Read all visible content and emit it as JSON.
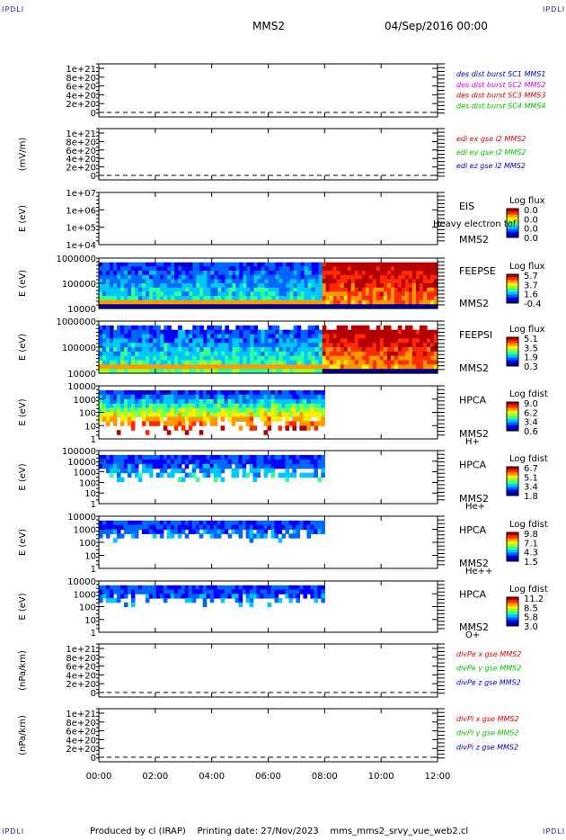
{
  "corners": {
    "tl": "IPDLI",
    "tr": "IPDLI",
    "bl": "IPDLI",
    "br": "IPDLI"
  },
  "header": {
    "spacecraft": "MMS2",
    "date": "04/Sep/2016 00:00"
  },
  "footer": {
    "produced": "Produced by cl (IRAP)",
    "printing": "Printing date: 27/Nov/2023",
    "file": "mms_mms2_srvy_vue_web2.cl"
  },
  "colors": {
    "red": "#d80000",
    "green": "#00c000",
    "blue": "#0000c8",
    "magenta": "#e000e0",
    "black": "#000000"
  },
  "chart_data": [
    {
      "type": "line",
      "ylabel": "",
      "yticks": [
        "1e+21",
        "8e+20",
        "6e+20",
        "4e+20",
        "2e+20",
        "0"
      ],
      "legend": [
        {
          "name": "des dist burst SC1 MMS1",
          "color": "#0000c8"
        },
        {
          "name": "des dist burst SC2 MMS2",
          "color": "#e000e0"
        },
        {
          "name": "des dist burst SC3 MMS3",
          "color": "#d80000"
        },
        {
          "name": "des dist burst SC4 MMS4",
          "color": "#00c000"
        }
      ]
    },
    {
      "type": "line",
      "ylabel": "(mV/m)",
      "yticks": [
        "1e+21",
        "8e+20",
        "6e+20",
        "4e+20",
        "2e+20",
        "0"
      ],
      "legend": [
        {
          "name": "edi ex gse l2 MMS2",
          "color": "#d80000"
        },
        {
          "name": "edi ey gse l2 MMS2",
          "color": "#00c000"
        },
        {
          "name": "edi ez gse l2 MMS2",
          "color": "#0000c8"
        }
      ]
    },
    {
      "type": "heatmap",
      "ylabel": "E (eV)",
      "yticks": [
        "1e+07",
        "1e+06",
        "1e+05",
        "1e+04"
      ],
      "label": [
        "EIS",
        "MMS2"
      ],
      "overlay": "Heavy electron tof",
      "cbar_title": "Log flux",
      "cbar_ticks": [
        "0.0",
        "0.0",
        "0.0",
        "0.0"
      ],
      "data_end_hour": 0
    },
    {
      "type": "heatmap",
      "ylabel": "E (eV)",
      "yticks": [
        "1000000",
        "100000",
        "10000"
      ],
      "label": [
        "FEEPSE",
        "MMS2"
      ],
      "cbar_title": "Log flux",
      "cbar_ticks": [
        "5.7",
        "3.7",
        "1.6",
        "-0.4"
      ],
      "data_end_hour": 12
    },
    {
      "type": "heatmap",
      "ylabel": "E (eV)",
      "yticks": [
        "1000000",
        "100000",
        "10000"
      ],
      "label": [
        "FEEPSI",
        "MMS2"
      ],
      "cbar_title": "Log flux",
      "cbar_ticks": [
        "5.1",
        "3.5",
        "1.9",
        "0.3"
      ],
      "data_end_hour": 12
    },
    {
      "type": "heatmap",
      "ylabel": "E (eV)",
      "yticks": [
        "10000",
        "1000",
        "100",
        "10",
        "1"
      ],
      "label": [
        "HPCA",
        "MMS2",
        "H+"
      ],
      "cbar_title": "Log fdist",
      "cbar_ticks": [
        "9.0",
        "6.2",
        "3.4",
        "0.6"
      ],
      "data_end_hour": 8
    },
    {
      "type": "heatmap",
      "ylabel": "E (eV)",
      "yticks": [
        "100000",
        "10000",
        "1000",
        "100",
        "10",
        "1"
      ],
      "label": [
        "HPCA",
        "MMS2",
        "He+"
      ],
      "cbar_title": "Log fdist",
      "cbar_ticks": [
        "6.7",
        "5.1",
        "3.4",
        "1.8"
      ],
      "data_end_hour": 8
    },
    {
      "type": "heatmap",
      "ylabel": "E (eV)",
      "yticks": [
        "10000",
        "1000",
        "100",
        "10",
        "1"
      ],
      "label": [
        "HPCA",
        "MMS2",
        "He++"
      ],
      "cbar_title": "Log fdist",
      "cbar_ticks": [
        "9.8",
        "7.1",
        "4.3",
        "1.5"
      ],
      "data_end_hour": 8
    },
    {
      "type": "heatmap",
      "ylabel": "E (eV)",
      "yticks": [
        "10000",
        "1000",
        "100",
        "10",
        "1"
      ],
      "label": [
        "HPCA",
        "MMS2",
        "O+"
      ],
      "cbar_title": "Log fdist",
      "cbar_ticks": [
        "11.2",
        "8.5",
        "5.8",
        "3.0"
      ],
      "data_end_hour": 8
    },
    {
      "type": "line",
      "ylabel": "(nPa/km)",
      "yticks": [
        "1e+21",
        "8e+20",
        "6e+20",
        "4e+20",
        "2e+20",
        "0"
      ],
      "legend": [
        {
          "name": "divPe x gse MMS2",
          "color": "#d80000"
        },
        {
          "name": "divPe y gse MMS2",
          "color": "#00c000"
        },
        {
          "name": "divPe z gse MMS2",
          "color": "#0000c8"
        }
      ]
    },
    {
      "type": "line",
      "ylabel": "(nPa/km)",
      "yticks": [
        "1e+21",
        "8e+20",
        "6e+20",
        "4e+20",
        "2e+20",
        "0"
      ],
      "legend": [
        {
          "name": "divPi x gse MMS2",
          "color": "#d80000"
        },
        {
          "name": "divPi y gse MMS2",
          "color": "#00c000"
        },
        {
          "name": "divPi z gse MMS2",
          "color": "#0000c8"
        }
      ]
    }
  ],
  "xaxis": {
    "ticks": [
      "00:00",
      "02:00",
      "04:00",
      "06:00",
      "08:00",
      "10:00",
      "12:00"
    ],
    "range_hours": [
      0,
      12
    ]
  }
}
